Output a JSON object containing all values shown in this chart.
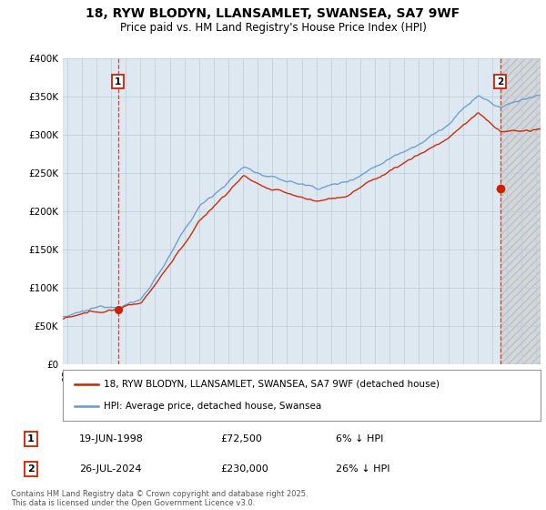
{
  "title": "18, RYW BLODYN, LLANSAMLET, SWANSEA, SA7 9WF",
  "subtitle": "Price paid vs. HM Land Registry's House Price Index (HPI)",
  "ylim": [
    0,
    400000
  ],
  "yticks": [
    0,
    50000,
    100000,
    150000,
    200000,
    250000,
    300000,
    350000,
    400000
  ],
  "xlim_start": 1994.7,
  "xlim_end": 2027.3,
  "sale1_year": 1998.47,
  "sale1_price": 72500,
  "sale1_date": "19-JUN-1998",
  "sale1_amount": "£72,500",
  "sale1_pct": "6% ↓ HPI",
  "sale2_year": 2024.55,
  "sale2_price": 230000,
  "sale2_date": "26-JUL-2024",
  "sale2_amount": "£230,000",
  "sale2_pct": "26% ↓ HPI",
  "hpi_color": "#6699cc",
  "property_color": "#cc2200",
  "chart_bg": "#dde8f0",
  "future_bg": "#cccccc",
  "legend1": "18, RYW BLODYN, LLANSAMLET, SWANSEA, SA7 9WF (detached house)",
  "legend2": "HPI: Average price, detached house, Swansea",
  "footer": "Contains HM Land Registry data © Crown copyright and database right 2025.\nThis data is licensed under the Open Government Licence v3.0.",
  "background_color": "#ffffff",
  "grid_color": "#bbccdd"
}
